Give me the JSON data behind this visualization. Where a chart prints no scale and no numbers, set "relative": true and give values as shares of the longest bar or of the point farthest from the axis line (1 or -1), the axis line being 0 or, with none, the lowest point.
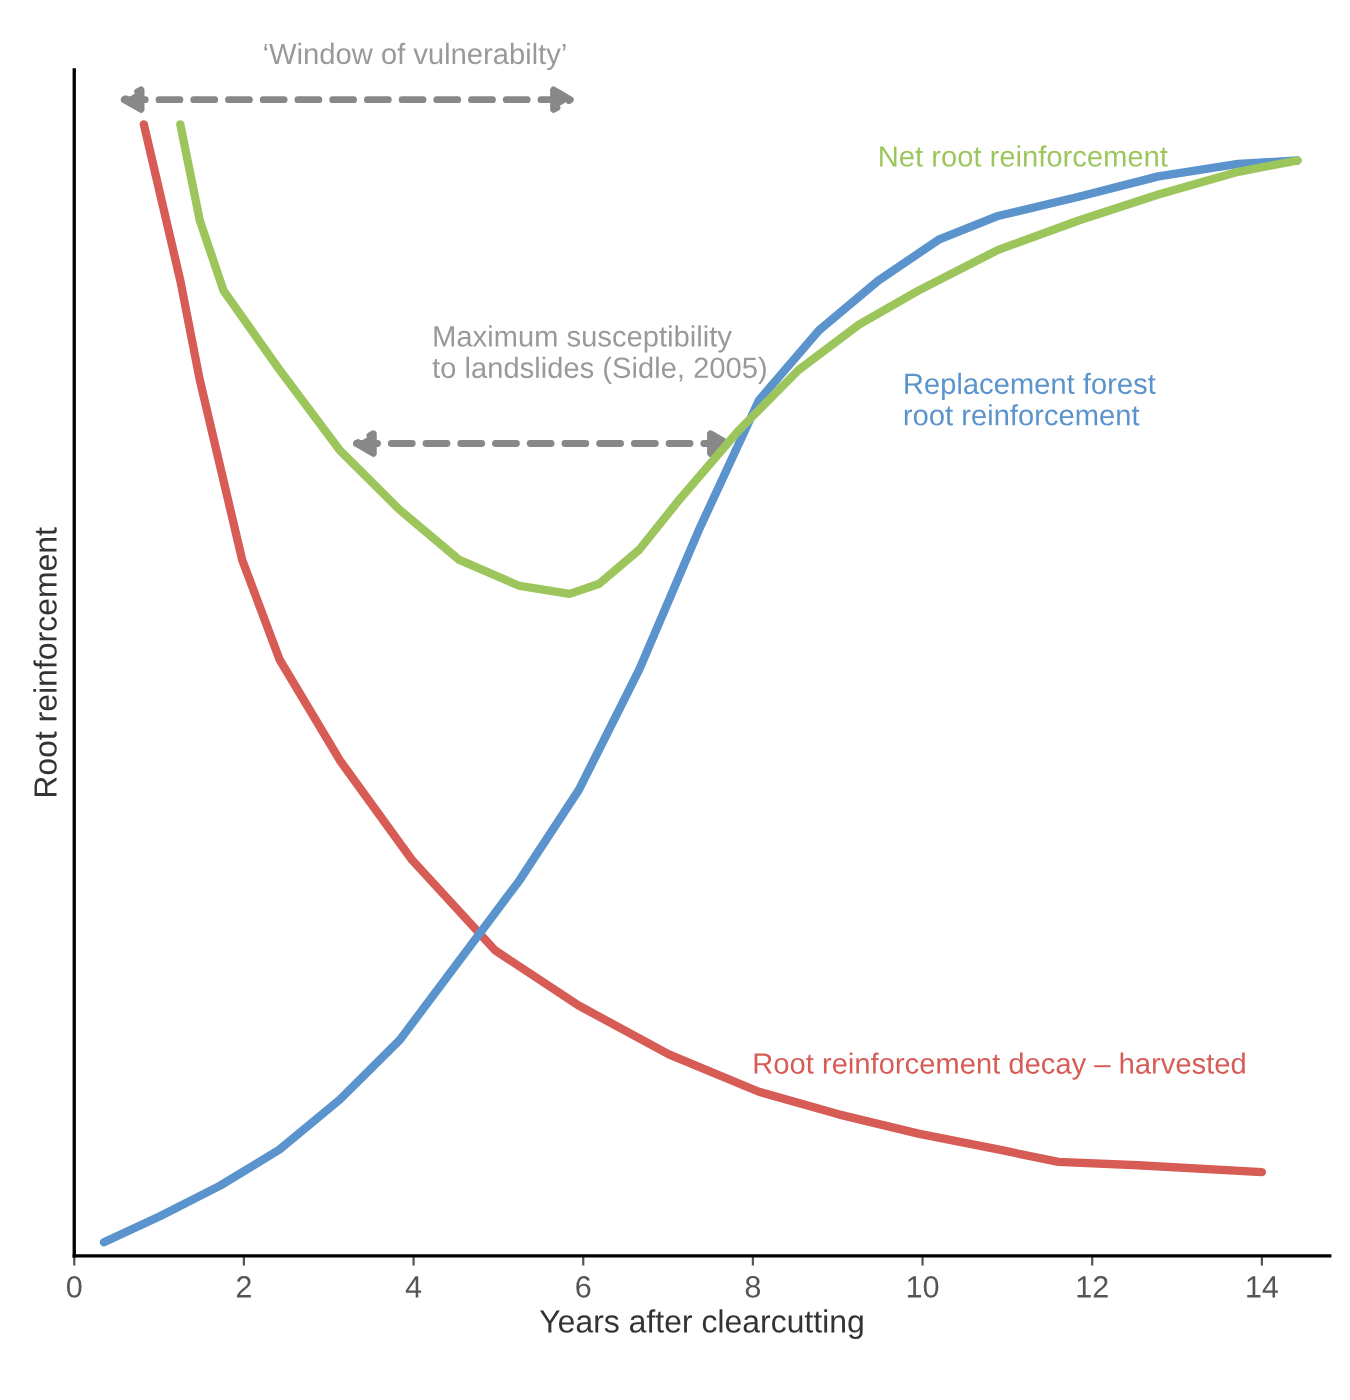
{
  "chart_data": {
    "type": "line",
    "relative": true,
    "xlabel": "Years after clearcutting",
    "ylabel": "Root reinforcement",
    "xlim": [
      0,
      14.8
    ],
    "xticks": [
      0,
      2,
      4,
      6,
      8,
      10,
      12,
      14
    ],
    "grid": false,
    "marker": "none",
    "line_style": "solid",
    "series": [
      {
        "name": "Root reinforcement decay – harvested",
        "color": "#d65c55",
        "x": [
          0.82,
          1.25,
          1.48,
          1.98,
          2.42,
          3.13,
          3.98,
          4.96,
          5.95,
          7.01,
          8.07,
          9.01,
          9.95,
          10.89,
          11.6,
          12.54,
          14.0
        ],
        "values": [
          1.0,
          0.862,
          0.774,
          0.615,
          0.527,
          0.438,
          0.35,
          0.27,
          0.221,
          0.178,
          0.145,
          0.125,
          0.108,
          0.094,
          0.083,
          0.08,
          0.074
        ]
      },
      {
        "name": "Replacement forest root reinforcement",
        "color": "#5b93cc",
        "x": [
          0.35,
          1.01,
          1.72,
          2.42,
          3.13,
          3.84,
          4.54,
          5.25,
          5.95,
          6.66,
          7.36,
          8.07,
          8.78,
          9.48,
          10.19,
          10.89,
          11.84,
          12.78,
          13.72,
          14.42
        ],
        "values": [
          0.012,
          0.035,
          0.062,
          0.094,
          0.138,
          0.191,
          0.261,
          0.332,
          0.412,
          0.518,
          0.641,
          0.756,
          0.818,
          0.862,
          0.898,
          0.919,
          0.936,
          0.954,
          0.965,
          0.968
        ]
      },
      {
        "name": "Net root reinforcement",
        "color": "#9cc65c",
        "x": [
          1.25,
          1.48,
          1.76,
          2.42,
          3.13,
          3.84,
          4.54,
          5.25,
          5.84,
          6.19,
          6.66,
          7.13,
          7.84,
          8.54,
          9.25,
          9.95,
          10.89,
          11.84,
          12.78,
          13.72,
          14.42
        ],
        "values": [
          1.0,
          0.915,
          0.853,
          0.783,
          0.712,
          0.659,
          0.615,
          0.592,
          0.585,
          0.594,
          0.624,
          0.668,
          0.73,
          0.783,
          0.823,
          0.853,
          0.889,
          0.915,
          0.938,
          0.958,
          0.968
        ]
      }
    ],
    "annotations": [
      "‘Window of vulnerabilty’",
      "Maximum susceptibility\nto landslides (Sidle, 2005)"
    ]
  }
}
